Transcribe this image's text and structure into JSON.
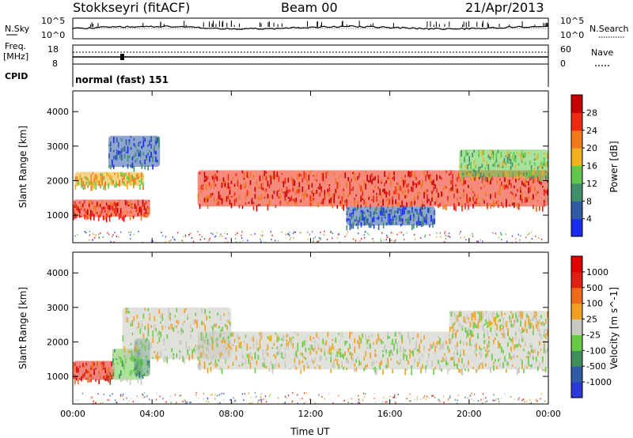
{
  "header": {
    "title": "Stokkseyri (fitACF)",
    "beam": "Beam 00",
    "date": "21/Apr/2013"
  },
  "top_panels": {
    "nsky_label": "N.Sky",
    "nsearch_label": "N.Search",
    "log_tick_high": "10^5",
    "log_tick_low": "10^0",
    "freq_label": "Freq.",
    "freq_unit": "[MHz]",
    "freq_ticks": [
      "18",
      "8"
    ],
    "nave_label": "Nave",
    "nave_ticks": [
      "60",
      "0"
    ],
    "cpid_label": "CPID",
    "cpid_value": "normal (fast) 151"
  },
  "chart_data": [
    {
      "type": "heatmap",
      "name": "Power",
      "ylabel": "Slant Range [km]",
      "yticks": [
        1000,
        2000,
        3000,
        4000
      ],
      "ytick_labels": [
        "1000",
        "2000",
        "3000",
        "4000"
      ],
      "ylim": [
        200,
        4600
      ],
      "xlim": [
        0,
        24
      ],
      "colorbar_label": "Power [dB]",
      "colorbar_ticks": [
        "28",
        "24",
        "20",
        "16",
        "12",
        "8",
        "4"
      ],
      "colors": [
        "#1a2cf0",
        "#2f5ba8",
        "#3f8f6a",
        "#5fc94a",
        "#f0b020",
        "#f07a1a",
        "#ee2a12",
        "#c80000"
      ],
      "regions": [
        {
          "x0": 0.0,
          "x1": 3.9,
          "y0": 950,
          "y1": 1450,
          "level": 6
        },
        {
          "x0": 0.1,
          "x1": 3.6,
          "y0": 1850,
          "y1": 2250,
          "level": 4
        },
        {
          "x0": 1.8,
          "x1": 4.4,
          "y0": 2400,
          "y1": 3300,
          "level": 1
        },
        {
          "x0": 6.3,
          "x1": 24.0,
          "y0": 1250,
          "y1": 2300,
          "level": 6
        },
        {
          "x0": 13.8,
          "x1": 18.3,
          "y0": 700,
          "y1": 1250,
          "level": 1
        },
        {
          "x0": 19.5,
          "x1": 24.0,
          "y0": 2100,
          "y1": 2900,
          "level": 3
        }
      ]
    },
    {
      "type": "heatmap",
      "name": "Velocity",
      "ylabel": "Slant Range [km]",
      "yticks": [
        1000,
        2000,
        3000,
        4000
      ],
      "ytick_labels": [
        "1000",
        "2000",
        "3000",
        "4000"
      ],
      "ylim": [
        200,
        4600
      ],
      "xlim": [
        0,
        24
      ],
      "xticks": [
        0,
        4,
        8,
        12,
        16,
        20,
        24
      ],
      "xtick_labels": [
        "00:00",
        "04:00",
        "08:00",
        "12:00",
        "16:00",
        "20:00",
        "00:00"
      ],
      "xlabel": "Time UT",
      "colorbar_label": "Velocity [m s^-1]",
      "colorbar_ticks": [
        "1000",
        "500",
        "100",
        "25",
        "-25",
        "-100",
        "-500",
        "-1000"
      ],
      "colors": [
        "#2a3ad8",
        "#2f5ba8",
        "#3f8f5a",
        "#66cc44",
        "#c8c8c0",
        "#f0a020",
        "#f06a1a",
        "#e02010",
        "#e00000"
      ],
      "regions": [
        {
          "x0": 0.0,
          "x1": 2.1,
          "y0": 900,
          "y1": 1450,
          "level": 7
        },
        {
          "x0": 2.0,
          "x1": 3.5,
          "y0": 900,
          "y1": 1800,
          "level": 3
        },
        {
          "x0": 3.1,
          "x1": 3.9,
          "y0": 1000,
          "y1": 2100,
          "level": 2
        },
        {
          "x0": 2.5,
          "x1": 8.0,
          "y0": 1500,
          "y1": 3000,
          "level": 4
        },
        {
          "x0": 6.3,
          "x1": 24.0,
          "y0": 1200,
          "y1": 2300,
          "level": 4
        },
        {
          "x0": 19.0,
          "x1": 24.0,
          "y0": 2300,
          "y1": 2900,
          "level": 4
        }
      ]
    }
  ]
}
